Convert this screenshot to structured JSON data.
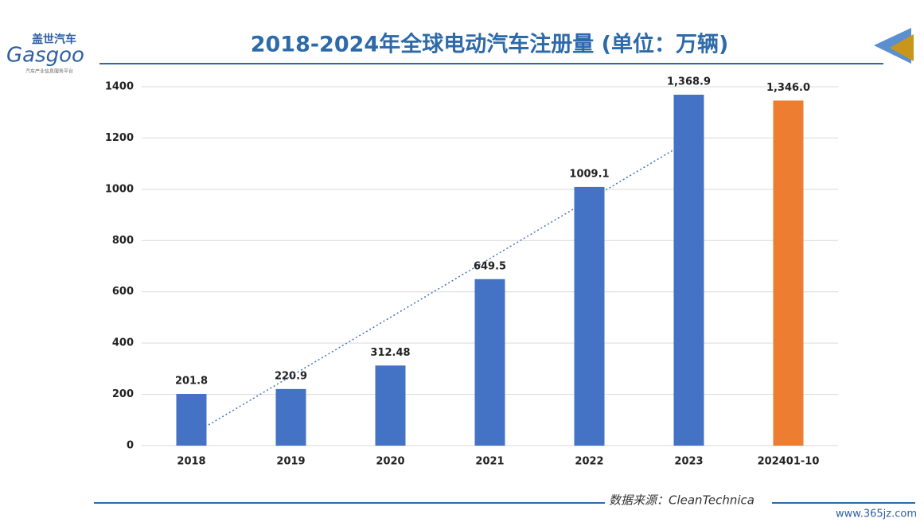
{
  "logo": {
    "brand": "盖世汽车",
    "name": "Gasgoo",
    "tagline": "汽车产业信息服务平台"
  },
  "chart_data": {
    "type": "bar",
    "title": "2018-2024年全球电动汽车注册量 (单位：万辆)",
    "categories": [
      "2018",
      "2019",
      "2020",
      "2021",
      "2022",
      "2023",
      "202401-10"
    ],
    "values": [
      201.8,
      220.9,
      312.48,
      649.5,
      1009.1,
      1368.9,
      1346.0
    ],
    "value_labels": [
      "201.8",
      "220.9",
      "312.48",
      "649.5",
      "1009.1",
      "1,368.9",
      "1,346.0"
    ],
    "colors": [
      "#4472c4",
      "#4472c4",
      "#4472c4",
      "#4472c4",
      "#4472c4",
      "#4472c4",
      "#ed7d31"
    ],
    "ylim": [
      0,
      1400
    ],
    "yticks": [
      0,
      200,
      400,
      600,
      800,
      1000,
      1200,
      1400
    ],
    "grid": true,
    "trendline": true
  },
  "source": "数据来源：CleanTechnica",
  "footer": "www.365jz.com"
}
